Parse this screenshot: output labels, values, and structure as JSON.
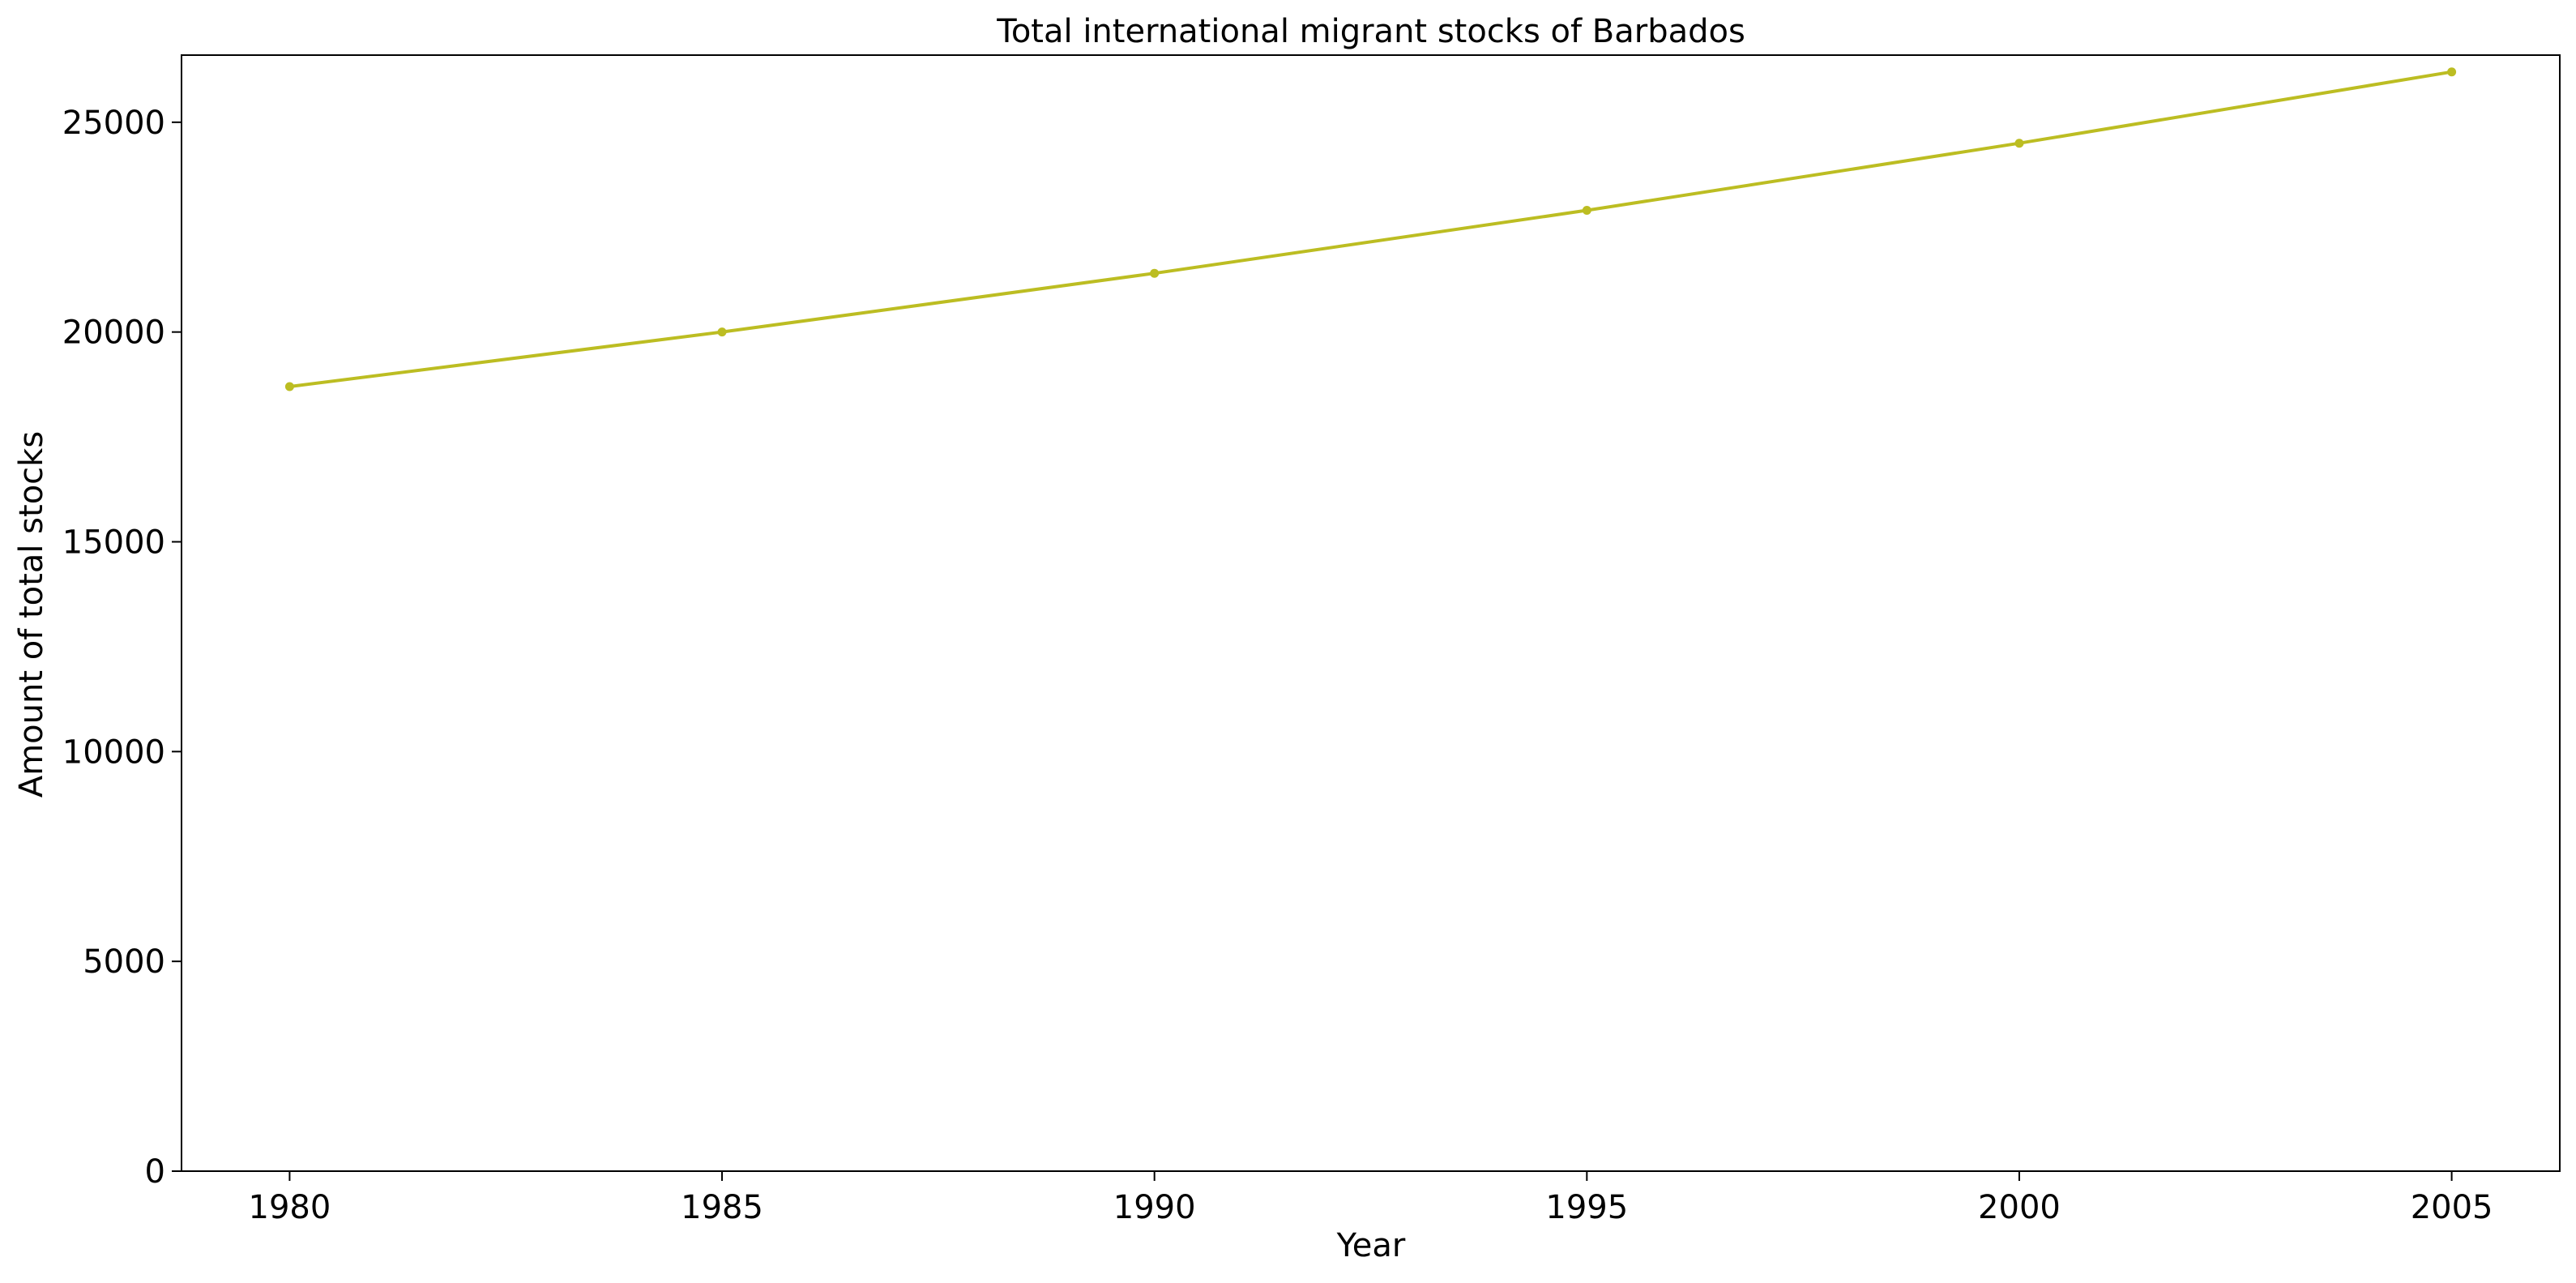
{
  "chart_data": {
    "type": "line",
    "title": "Total international migrant stocks of Barbados",
    "xlabel": "Year",
    "ylabel": "Amount of total stocks",
    "x": [
      1980,
      1985,
      1990,
      1995,
      2000,
      2005
    ],
    "series": [
      {
        "values": [
          18700,
          20000,
          21400,
          22900,
          24500,
          26200
        ],
        "color": "#bcbd22",
        "marker": "circle"
      }
    ],
    "xlim": [
      1978.75,
      2006.25
    ],
    "ylim": [
      0,
      26600
    ],
    "xticks": [
      1980,
      1985,
      1990,
      1995,
      2000,
      2005
    ],
    "yticks": [
      0,
      5000,
      10000,
      15000,
      20000,
      25000
    ],
    "grid": false,
    "legend": "none"
  }
}
